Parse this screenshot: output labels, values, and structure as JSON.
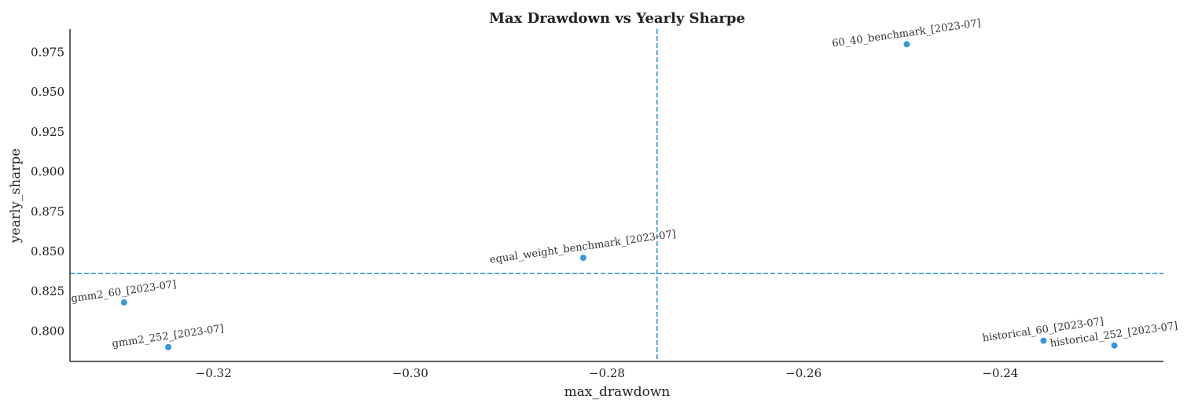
{
  "chart_data": {
    "type": "scatter",
    "title": "Max Drawdown vs Yearly Sharpe",
    "xlabel": "max_drawdown",
    "ylabel": "yearly_sharpe",
    "xlim": [
      -0.3346,
      -0.2234
    ],
    "ylim": [
      0.781,
      0.9895
    ],
    "xticks": [
      -0.32,
      -0.3,
      -0.28,
      -0.26,
      -0.24
    ],
    "xtick_labels": [
      "−0.32",
      "−0.30",
      "−0.28",
      "−0.26",
      "−0.24"
    ],
    "yticks": [
      0.8,
      0.825,
      0.85,
      0.875,
      0.9,
      0.925,
      0.95,
      0.975
    ],
    "ytick_labels": [
      "0.800",
      "0.825",
      "0.850",
      "0.875",
      "0.900",
      "0.925",
      "0.950",
      "0.975"
    ],
    "grid": false,
    "point_color": "#3498db",
    "reference_line_color": "#3498db",
    "reference_lines": {
      "x": -0.2749,
      "y": 0.8361
    },
    "points": [
      {
        "label": "60_40_benchmark_[2023-07]",
        "x": -0.2495,
        "y": 0.98
      },
      {
        "label": "equal_weight_benchmark_[2023-07]",
        "x": -0.2824,
        "y": 0.846
      },
      {
        "label": "gmm2_60_[2023-07]",
        "x": -0.3291,
        "y": 0.818
      },
      {
        "label": "gmm2_252_[2023-07]",
        "x": -0.3246,
        "y": 0.79
      },
      {
        "label": "historical_60_[2023-07]",
        "x": -0.2356,
        "y": 0.794
      },
      {
        "label": "historical_252_[2023-07]",
        "x": -0.2284,
        "y": 0.791
      }
    ]
  }
}
